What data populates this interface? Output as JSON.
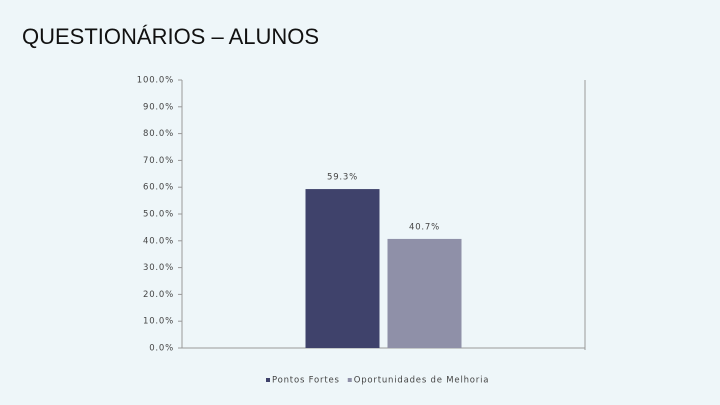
{
  "chart_data": {
    "type": "bar",
    "title": "QUESTIONÁRIOS – ALUNOS",
    "categories": [
      null
    ],
    "series": [
      {
        "name": "Pontos Fortes",
        "color": "#3f426b",
        "values": [
          59.3
        ],
        "value_labels": [
          "59.3%"
        ]
      },
      {
        "name": "Oportunidades de Melhoria",
        "color": "#8f90a8",
        "values": [
          40.7
        ],
        "value_labels": [
          "40.7%"
        ]
      }
    ],
    "ylim": [
      0,
      100
    ],
    "yticks": [
      {
        "value": 0,
        "label": "0.0%"
      },
      {
        "value": 10,
        "label": "10.0%"
      },
      {
        "value": 20,
        "label": "20.0%"
      },
      {
        "value": 30,
        "label": "30.0%"
      },
      {
        "value": 40,
        "label": "40.0%"
      },
      {
        "value": 50,
        "label": "50.0%"
      },
      {
        "value": 60,
        "label": "60.0%"
      },
      {
        "value": 70,
        "label": "70.0%"
      },
      {
        "value": 80,
        "label": "80.0%"
      },
      {
        "value": 90,
        "label": "90.0%"
      },
      {
        "value": 100,
        "label": "100.0%"
      }
    ],
    "legend": "bottom"
  }
}
